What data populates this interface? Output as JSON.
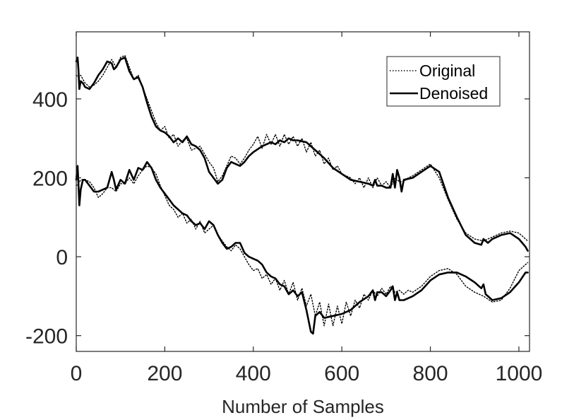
{
  "chart_data": {
    "type": "line",
    "title": "",
    "xlabel": "Number of Samples",
    "ylabel": "",
    "xlim": [
      0,
      1024
    ],
    "ylim": [
      -240,
      570
    ],
    "xticks": [
      0,
      200,
      400,
      600,
      800,
      1000
    ],
    "yticks": [
      -200,
      0,
      200,
      400
    ],
    "xtick_labels": [
      "0",
      "200",
      "400",
      "600",
      "800",
      "1000"
    ],
    "ytick_labels": [
      "-200",
      "0",
      "200",
      "400"
    ],
    "grid": false,
    "legend": {
      "placement": "top-right",
      "entries": [
        {
          "label": "Original",
          "style": "dotted"
        },
        {
          "label": "Denoised",
          "style": "solid"
        }
      ]
    },
    "colors": {
      "line": "#000000",
      "axis": "#262626",
      "background": "#ffffff"
    },
    "series": [
      {
        "name": "Original",
        "group": "upper",
        "style": "dotted",
        "x": [
          0,
          5,
          10,
          15,
          20,
          30,
          40,
          50,
          60,
          70,
          80,
          90,
          100,
          110,
          120,
          130,
          140,
          150,
          160,
          170,
          180,
          190,
          200,
          210,
          220,
          230,
          240,
          250,
          260,
          270,
          280,
          290,
          300,
          310,
          320,
          330,
          340,
          350,
          360,
          370,
          380,
          390,
          400,
          410,
          420,
          430,
          440,
          450,
          460,
          470,
          480,
          490,
          500,
          510,
          520,
          530,
          540,
          550,
          560,
          570,
          580,
          590,
          600,
          610,
          620,
          630,
          640,
          650,
          660,
          670,
          680,
          690,
          700,
          710,
          720,
          730,
          740,
          750,
          760,
          780,
          800,
          820,
          840,
          860,
          880,
          900,
          920,
          940,
          960,
          980,
          1000,
          1010,
          1020
        ],
        "y": [
          460,
          455,
          460,
          450,
          440,
          430,
          435,
          445,
          460,
          480,
          500,
          480,
          505,
          510,
          480,
          450,
          460,
          430,
          400,
          370,
          340,
          320,
          330,
          300,
          310,
          280,
          295,
          300,
          270,
          275,
          280,
          260,
          240,
          225,
          190,
          205,
          230,
          255,
          250,
          235,
          250,
          270,
          285,
          305,
          275,
          310,
          285,
          310,
          280,
          310,
          285,
          305,
          280,
          300,
          265,
          290,
          255,
          270,
          235,
          250,
          220,
          230,
          210,
          205,
          200,
          185,
          200,
          175,
          200,
          175,
          200,
          180,
          190,
          175,
          200,
          190,
          190,
          200,
          205,
          220,
          235,
          200,
          145,
          95,
          60,
          45,
          40,
          50,
          60,
          65,
          60,
          50,
          40
        ]
      },
      {
        "name": "Denoised",
        "group": "upper",
        "style": "solid",
        "x": [
          0,
          3,
          5,
          7,
          10,
          15,
          20,
          30,
          40,
          50,
          60,
          70,
          80,
          85,
          90,
          100,
          110,
          120,
          130,
          140,
          150,
          160,
          170,
          180,
          190,
          200,
          210,
          220,
          230,
          240,
          250,
          260,
          270,
          280,
          290,
          300,
          310,
          320,
          330,
          340,
          350,
          360,
          370,
          380,
          390,
          400,
          420,
          440,
          450,
          460,
          470,
          480,
          490,
          500,
          520,
          540,
          560,
          580,
          600,
          620,
          640,
          660,
          670,
          675,
          680,
          690,
          700,
          710,
          715,
          720,
          725,
          730,
          735,
          740,
          760,
          780,
          800,
          820,
          840,
          860,
          880,
          900,
          915,
          920,
          925,
          930,
          940,
          960,
          980,
          1000,
          1015,
          1020
        ],
        "y": [
          495,
          505,
          475,
          425,
          445,
          440,
          430,
          425,
          440,
          460,
          475,
          495,
          490,
          475,
          480,
          500,
          505,
          470,
          450,
          455,
          430,
          390,
          355,
          330,
          320,
          315,
          305,
          290,
          300,
          290,
          305,
          285,
          280,
          270,
          250,
          215,
          200,
          185,
          195,
          225,
          240,
          235,
          230,
          240,
          255,
          265,
          280,
          290,
          285,
          295,
          290,
          300,
          295,
          295,
          290,
          270,
          250,
          225,
          210,
          195,
          190,
          185,
          180,
          195,
          180,
          180,
          175,
          175,
          210,
          175,
          220,
          200,
          165,
          195,
          200,
          215,
          230,
          215,
          150,
          100,
          55,
          35,
          30,
          45,
          40,
          35,
          45,
          55,
          60,
          45,
          25,
          15
        ]
      },
      {
        "name": "Original",
        "group": "lower",
        "style": "dotted",
        "x": [
          0,
          5,
          10,
          15,
          20,
          30,
          40,
          50,
          60,
          70,
          80,
          90,
          100,
          110,
          120,
          130,
          140,
          150,
          160,
          170,
          180,
          190,
          200,
          210,
          220,
          230,
          240,
          250,
          260,
          270,
          280,
          290,
          300,
          310,
          320,
          330,
          340,
          350,
          360,
          370,
          380,
          390,
          400,
          410,
          420,
          430,
          440,
          450,
          460,
          470,
          480,
          490,
          500,
          510,
          520,
          530,
          540,
          550,
          560,
          570,
          580,
          590,
          600,
          610,
          620,
          630,
          640,
          650,
          660,
          670,
          680,
          690,
          700,
          710,
          720,
          730,
          740,
          750,
          760,
          780,
          800,
          820,
          840,
          860,
          880,
          900,
          920,
          940,
          960,
          980,
          1000,
          1010,
          1020
        ],
        "y": [
          180,
          185,
          195,
          195,
          195,
          190,
          175,
          150,
          160,
          175,
          175,
          165,
          185,
          185,
          200,
          185,
          205,
          220,
          230,
          225,
          210,
          180,
          155,
          130,
          120,
          100,
          110,
          85,
          95,
          70,
          90,
          60,
          70,
          80,
          55,
          40,
          25,
          15,
          30,
          20,
          0,
          -20,
          -35,
          -30,
          -55,
          -45,
          -70,
          -55,
          -85,
          -60,
          -95,
          -65,
          -110,
          -80,
          -125,
          -95,
          -150,
          -115,
          -175,
          -120,
          -175,
          -125,
          -170,
          -115,
          -150,
          -110,
          -130,
          -95,
          -110,
          -85,
          -100,
          -80,
          -95,
          -75,
          -90,
          -85,
          -95,
          -85,
          -90,
          -75,
          -50,
          -35,
          -30,
          -45,
          -75,
          -90,
          -100,
          -115,
          -110,
          -80,
          -35,
          -25,
          -15
        ]
      },
      {
        "name": "Denoised",
        "group": "lower",
        "style": "solid",
        "x": [
          0,
          3,
          5,
          7,
          10,
          15,
          20,
          30,
          40,
          50,
          60,
          70,
          80,
          85,
          90,
          100,
          110,
          120,
          130,
          140,
          150,
          160,
          170,
          180,
          190,
          200,
          210,
          220,
          230,
          240,
          250,
          260,
          270,
          280,
          290,
          300,
          310,
          320,
          330,
          340,
          350,
          360,
          370,
          380,
          390,
          400,
          410,
          420,
          430,
          440,
          450,
          460,
          470,
          480,
          490,
          500,
          510,
          520,
          530,
          535,
          540,
          550,
          560,
          580,
          600,
          620,
          640,
          660,
          670,
          675,
          680,
          690,
          700,
          710,
          715,
          720,
          725,
          730,
          740,
          760,
          780,
          800,
          820,
          840,
          860,
          880,
          900,
          915,
          920,
          925,
          930,
          940,
          960,
          980,
          1000,
          1015,
          1020
        ],
        "y": [
          195,
          230,
          185,
          130,
          170,
          195,
          195,
          180,
          165,
          165,
          170,
          175,
          215,
          195,
          170,
          195,
          185,
          220,
          195,
          225,
          220,
          240,
          225,
          195,
          175,
          160,
          145,
          130,
          120,
          110,
          105,
          90,
          80,
          85,
          70,
          90,
          80,
          55,
          35,
          20,
          25,
          35,
          35,
          10,
          0,
          -5,
          -10,
          -20,
          -40,
          -50,
          -55,
          -70,
          -75,
          -95,
          -85,
          -100,
          -90,
          -135,
          -190,
          -195,
          -150,
          -140,
          -155,
          -150,
          -145,
          -135,
          -115,
          -100,
          -85,
          -110,
          -90,
          -90,
          -100,
          -85,
          -75,
          -110,
          -90,
          -110,
          -110,
          -100,
          -85,
          -60,
          -45,
          -40,
          -40,
          -50,
          -65,
          -80,
          -70,
          -95,
          -100,
          -110,
          -105,
          -90,
          -65,
          -40,
          -40
        ]
      }
    ]
  }
}
